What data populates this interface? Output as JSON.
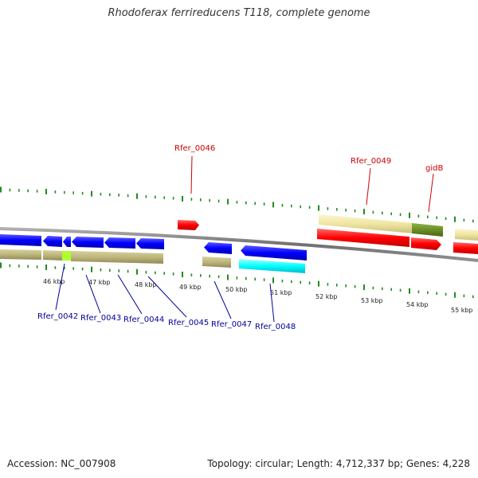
{
  "title": "Rhodoferax ferrireducens T118, complete genome",
  "footer": {
    "accession": "Accession: NC_007908",
    "stats": "Topology: circular; Length: 4,712,337 bp; Genes: 4,228"
  },
  "colors": {
    "backbone": "#808080",
    "tick": "#228b22",
    "forward_cds": "#ff0000",
    "reverse_cds": "#0000ff",
    "forward_gene": "#f0e6a0",
    "reverse_gene": "#bdb67a",
    "rna_light": "#00ffff",
    "rna_green": "#6b8e23",
    "highlight": "#adff2f",
    "label_forward": "#cc0000",
    "label_reverse": "#000099"
  },
  "scale_labels": [
    "46 kbp",
    "47 kbp",
    "48 kbp",
    "49 kbp",
    "50 kbp",
    "51 kbp",
    "52 kbp",
    "53 kbp",
    "54 kbp",
    "55 kbp"
  ],
  "gene_labels": {
    "forward": [
      "Rfer_0046",
      "Rfer_0049",
      "gidB"
    ],
    "reverse": [
      "Rfer_0042",
      "Rfer_0043",
      "Rfer_0044",
      "Rfer_0045",
      "Rfer_0047",
      "Rfer_0048"
    ]
  }
}
